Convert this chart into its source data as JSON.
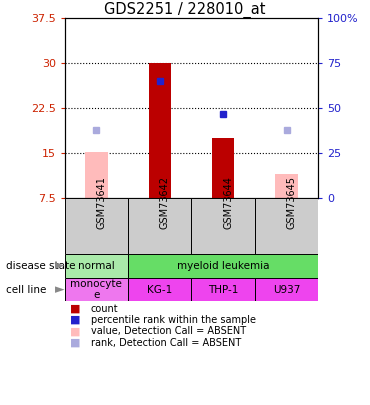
{
  "title": "GDS2251 / 228010_at",
  "samples": [
    "GSM73641",
    "GSM73642",
    "GSM73644",
    "GSM73645"
  ],
  "count_values": [
    null,
    30.0,
    17.5,
    null
  ],
  "rank_values": [
    null,
    65.0,
    47.0,
    null
  ],
  "value_absent": [
    15.2,
    null,
    null,
    11.5
  ],
  "rank_absent": [
    38.0,
    null,
    null,
    38.0
  ],
  "ylim_left": [
    7.5,
    37.5
  ],
  "ylim_right": [
    0,
    100
  ],
  "yticks_left": [
    7.5,
    15.0,
    22.5,
    30.0,
    37.5
  ],
  "yticks_right": [
    0,
    25,
    50,
    75,
    100
  ],
  "ytick_labels_left": [
    "7.5",
    "15",
    "22.5",
    "30",
    "37.5"
  ],
  "ytick_labels_right": [
    "0",
    "25",
    "50",
    "75",
    "100%"
  ],
  "hlines": [
    15.0,
    22.5,
    30.0
  ],
  "disease_items": [
    {
      "label": "normal",
      "span": 1,
      "color": "#aaeaaa"
    },
    {
      "label": "myeloid leukemia",
      "span": 3,
      "color": "#66dd66"
    }
  ],
  "cell_items": [
    {
      "label": "monocyte\ne",
      "color": "#ee77ee"
    },
    {
      "label": "KG-1",
      "color": "#ee44ee"
    },
    {
      "label": "THP-1",
      "color": "#ee44ee"
    },
    {
      "label": "U937",
      "color": "#ee44ee"
    }
  ],
  "bar_width": 0.35,
  "bar_color_count": "#bb0000",
  "bar_color_absent_value": "#ffbbbb",
  "dot_color_rank": "#2222cc",
  "dot_color_rank_absent": "#aaaadd",
  "left_tick_color": "#cc2200",
  "right_tick_color": "#2222cc",
  "legend_labels": [
    "count",
    "percentile rank within the sample",
    "value, Detection Call = ABSENT",
    "rank, Detection Call = ABSENT"
  ],
  "sample_bg": "#cccccc",
  "plot_bg": "#ffffff"
}
